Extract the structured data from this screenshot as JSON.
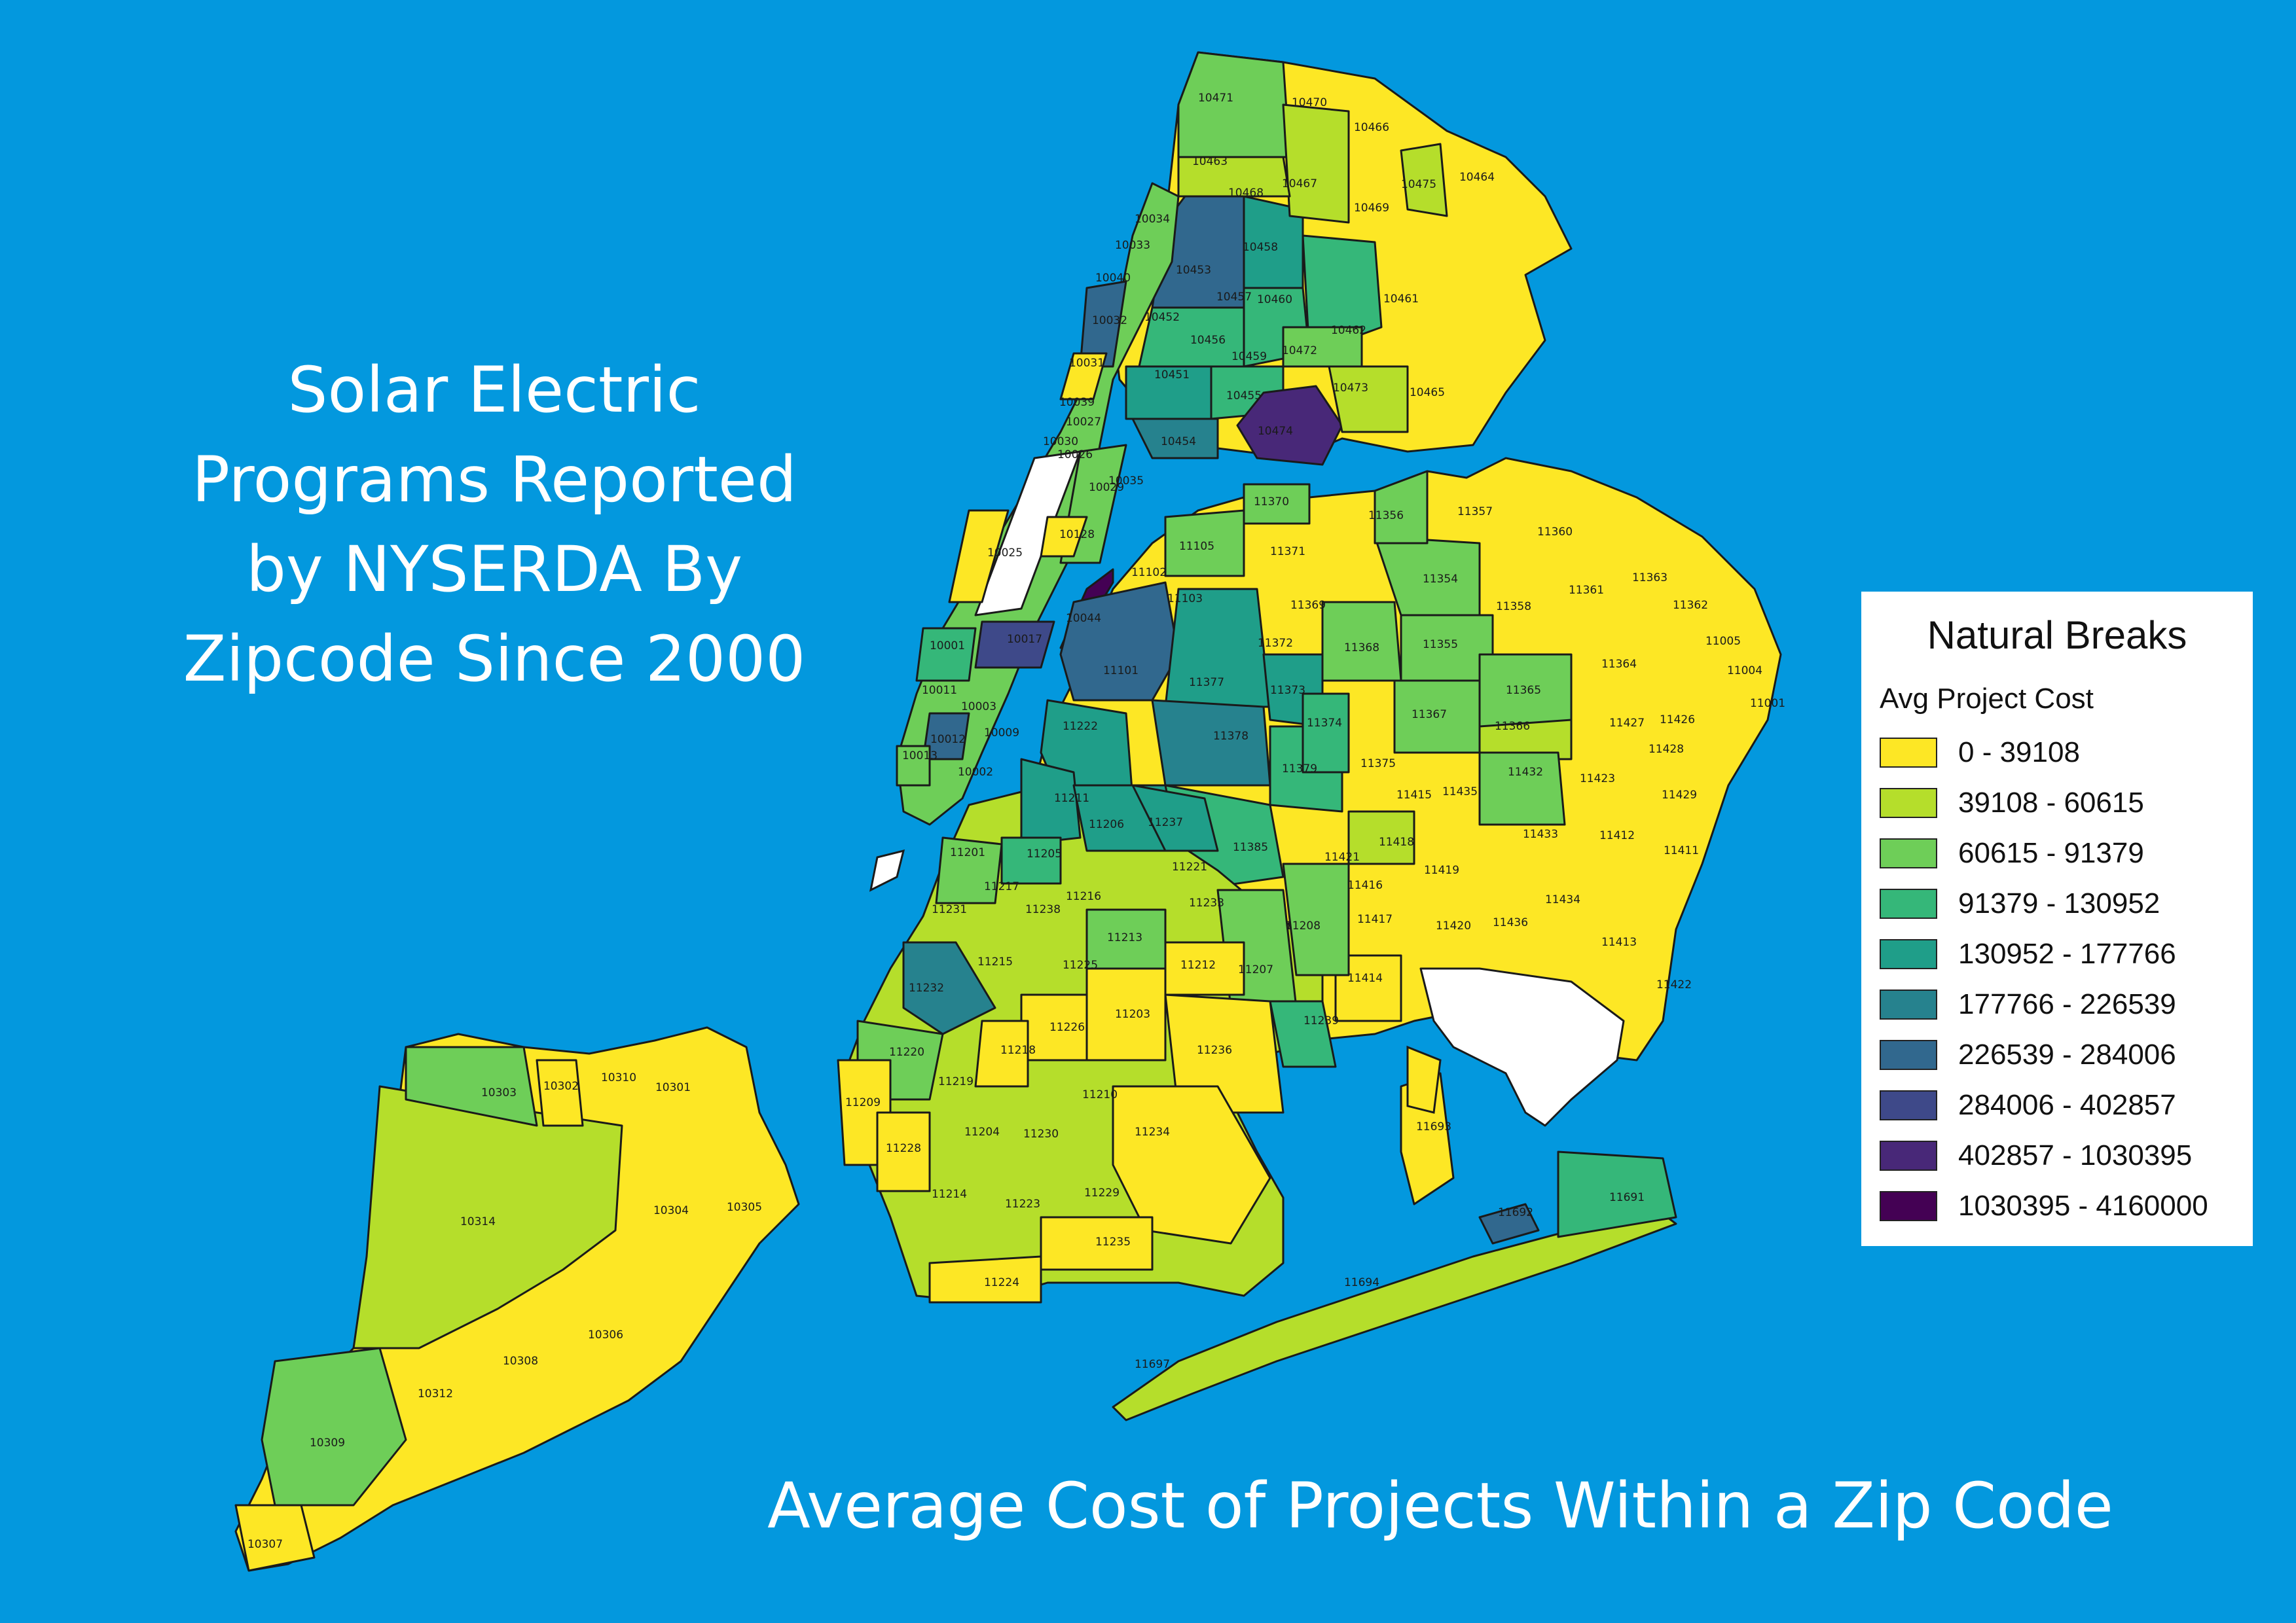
{
  "title_lines": [
    "Solar Electric",
    "Programs Reported",
    "by NYSERDA By",
    "Zipcode Since 2000"
  ],
  "subtitle": "Average Cost of Projects Within a Zip Code",
  "legend": {
    "title": "Natural Breaks",
    "subtitle": "Avg Project Cost",
    "classes": [
      {
        "label": "0 - 39108",
        "color": "#fde725"
      },
      {
        "label": "39108 - 60615",
        "color": "#b5de2b"
      },
      {
        "label": "60615 - 91379",
        "color": "#6ece58"
      },
      {
        "label": "91379 - 130952",
        "color": "#35b779"
      },
      {
        "label": "130952 - 177766",
        "color": "#1f9e89"
      },
      {
        "label": "177766 - 226539",
        "color": "#26828e"
      },
      {
        "label": "226539 - 284006",
        "color": "#31688e"
      },
      {
        "label": "284006 - 402857",
        "color": "#3e4989"
      },
      {
        "label": "402857 - 1030395",
        "color": "#482878"
      },
      {
        "label": "1030395 - 4160000",
        "color": "#440154"
      }
    ]
  },
  "zip_labels": [
    {
      "zip": "10471",
      "cls": 2
    },
    {
      "zip": "10470",
      "cls": 0
    },
    {
      "zip": "10466",
      "cls": 0
    },
    {
      "zip": "10463",
      "cls": 1
    },
    {
      "zip": "10467",
      "cls": 1
    },
    {
      "zip": "10464",
      "cls": 0
    },
    {
      "zip": "10475",
      "cls": 1
    },
    {
      "zip": "10469",
      "cls": 0
    },
    {
      "zip": "10468",
      "cls": 6
    },
    {
      "zip": "10458",
      "cls": 4
    },
    {
      "zip": "10453",
      "cls": 3
    },
    {
      "zip": "10457",
      "cls": 3
    },
    {
      "zip": "10460",
      "cls": 3
    },
    {
      "zip": "10461",
      "cls": 0
    },
    {
      "zip": "10462",
      "cls": 3
    },
    {
      "zip": "10452",
      "cls": 4
    },
    {
      "zip": "10456",
      "cls": 3
    },
    {
      "zip": "10472",
      "cls": 2
    },
    {
      "zip": "10473",
      "cls": 1
    },
    {
      "zip": "10465",
      "cls": 0
    },
    {
      "zip": "10459",
      "cls": 3
    },
    {
      "zip": "10451",
      "cls": 4
    },
    {
      "zip": "10474",
      "cls": 8
    },
    {
      "zip": "10455",
      "cls": 3
    },
    {
      "zip": "10454",
      "cls": 5
    },
    {
      "zip": "10032",
      "cls": 6
    },
    {
      "zip": "10031",
      "cls": 0
    },
    {
      "zip": "10034",
      "cls": 4
    },
    {
      "zip": "10033",
      "cls": 4
    },
    {
      "zip": "10040",
      "cls": 4
    },
    {
      "zip": "10027",
      "cls": 2
    },
    {
      "zip": "10026",
      "cls": 1
    },
    {
      "zip": "10030",
      "cls": 2
    },
    {
      "zip": "10039",
      "cls": 3
    },
    {
      "zip": "10029",
      "cls": 2
    },
    {
      "zip": "10035",
      "cls": 2
    },
    {
      "zip": "10128",
      "cls": 0
    },
    {
      "zip": "10025",
      "cls": 0
    },
    {
      "zip": "10001",
      "cls": 3
    },
    {
      "zip": "10011",
      "cls": 3
    },
    {
      "zip": "10003",
      "cls": 3
    },
    {
      "zip": "10012",
      "cls": 6
    },
    {
      "zip": "10013",
      "cls": 2
    },
    {
      "zip": "10002",
      "cls": 2
    },
    {
      "zip": "10009",
      "cls": 3
    },
    {
      "zip": "10017",
      "cls": 6
    },
    {
      "zip": "10044",
      "cls": 9
    },
    {
      "zip": "11101",
      "cls": 6
    },
    {
      "zip": "11102",
      "cls": 1
    },
    {
      "zip": "11105",
      "cls": 2
    },
    {
      "zip": "11103",
      "cls": 3
    },
    {
      "zip": "11370",
      "cls": 2
    },
    {
      "zip": "11371",
      "cls": 2
    },
    {
      "zip": "11369",
      "cls": 0
    },
    {
      "zip": "11372",
      "cls": 2
    },
    {
      "zip": "11377",
      "cls": 4
    },
    {
      "zip": "11373",
      "cls": 4
    },
    {
      "zip": "11378",
      "cls": 5
    },
    {
      "zip": "11379",
      "cls": 3
    },
    {
      "zip": "11368",
      "cls": 2
    },
    {
      "zip": "11354",
      "cls": 2
    },
    {
      "zip": "11355",
      "cls": 2
    },
    {
      "zip": "11356",
      "cls": 2
    },
    {
      "zip": "11357",
      "cls": 0
    },
    {
      "zip": "11360",
      "cls": 0
    },
    {
      "zip": "11358",
      "cls": 0
    },
    {
      "zip": "11361",
      "cls": 0
    },
    {
      "zip": "11363",
      "cls": 0
    },
    {
      "zip": "11362",
      "cls": 0
    },
    {
      "zip": "11364",
      "cls": 0
    },
    {
      "zip": "11365",
      "cls": 2
    },
    {
      "zip": "11367",
      "cls": 2
    },
    {
      "zip": "11366",
      "cls": 1
    },
    {
      "zip": "11375",
      "cls": 0
    },
    {
      "zip": "11374",
      "cls": 3
    },
    {
      "zip": "11385",
      "cls": 3
    },
    {
      "zip": "11222",
      "cls": 4
    },
    {
      "zip": "11211",
      "cls": 4
    },
    {
      "zip": "11206",
      "cls": 4
    },
    {
      "zip": "11237",
      "cls": 4
    },
    {
      "zip": "11427",
      "cls": 0
    },
    {
      "zip": "11426",
      "cls": 0
    },
    {
      "zip": "11428",
      "cls": 0
    },
    {
      "zip": "11004",
      "cls": 0
    },
    {
      "zip": "11005",
      "cls": 0
    },
    {
      "zip": "11001",
      "cls": 0
    },
    {
      "zip": "11423",
      "cls": 0
    },
    {
      "zip": "11432",
      "cls": 2
    },
    {
      "zip": "11435",
      "cls": 0
    },
    {
      "zip": "11415",
      "cls": 1
    },
    {
      "zip": "11429",
      "cls": 0
    },
    {
      "zip": "11412",
      "cls": 0
    },
    {
      "zip": "11411",
      "cls": 0
    },
    {
      "zip": "11433",
      "cls": 0
    },
    {
      "zip": "11434",
      "cls": 0
    },
    {
      "zip": "11413",
      "cls": 0
    },
    {
      "zip": "11422",
      "cls": 0
    },
    {
      "zip": "11436",
      "cls": 0
    },
    {
      "zip": "11420",
      "cls": 0
    },
    {
      "zip": "11419",
      "cls": 0
    },
    {
      "zip": "11418",
      "cls": 1
    },
    {
      "zip": "11421",
      "cls": 0
    },
    {
      "zip": "11416",
      "cls": 0
    },
    {
      "zip": "11417",
      "cls": 0
    },
    {
      "zip": "11414",
      "cls": 0
    },
    {
      "zip": "11208",
      "cls": 2
    },
    {
      "zip": "11207",
      "cls": 2
    },
    {
      "zip": "11239",
      "cls": 3
    },
    {
      "zip": "11221",
      "cls": 1
    },
    {
      "zip": "11233",
      "cls": 2
    },
    {
      "zip": "11213",
      "cls": 1
    },
    {
      "zip": "11216",
      "cls": 1
    },
    {
      "zip": "11238",
      "cls": 1
    },
    {
      "zip": "11205",
      "cls": 2
    },
    {
      "zip": "11201",
      "cls": 2
    },
    {
      "zip": "11217",
      "cls": 2
    },
    {
      "zip": "11231",
      "cls": 2
    },
    {
      "zip": "11215",
      "cls": 1
    },
    {
      "zip": "11232",
      "cls": 5
    },
    {
      "zip": "11225",
      "cls": 1
    },
    {
      "zip": "11212",
      "cls": 0
    },
    {
      "zip": "11203",
      "cls": 0
    },
    {
      "zip": "11226",
      "cls": 0
    },
    {
      "zip": "11218",
      "cls": 0
    },
    {
      "zip": "11236",
      "cls": 0
    },
    {
      "zip": "11220",
      "cls": 2
    },
    {
      "zip": "11219",
      "cls": 1
    },
    {
      "zip": "11210",
      "cls": 1
    },
    {
      "zip": "11209",
      "cls": 0
    },
    {
      "zip": "11228",
      "cls": 0
    },
    {
      "zip": "11204",
      "cls": 1
    },
    {
      "zip": "11230",
      "cls": 1
    },
    {
      "zip": "11234",
      "cls": 0
    },
    {
      "zip": "11214",
      "cls": 1
    },
    {
      "zip": "11223",
      "cls": 1
    },
    {
      "zip": "11229",
      "cls": 1
    },
    {
      "zip": "11235",
      "cls": 0
    },
    {
      "zip": "11224",
      "cls": 0
    },
    {
      "zip": "11693",
      "cls": 0
    },
    {
      "zip": "11692",
      "cls": 6
    },
    {
      "zip": "11691",
      "cls": 3
    },
    {
      "zip": "11694",
      "cls": 1
    },
    {
      "zip": "11697",
      "cls": 1
    },
    {
      "zip": "10303",
      "cls": 2
    },
    {
      "zip": "10302",
      "cls": 0
    },
    {
      "zip": "10310",
      "cls": 0
    },
    {
      "zip": "10301",
      "cls": 0
    },
    {
      "zip": "10314",
      "cls": 1
    },
    {
      "zip": "10304",
      "cls": 0
    },
    {
      "zip": "10305",
      "cls": 0
    },
    {
      "zip": "10306",
      "cls": 0
    },
    {
      "zip": "10308",
      "cls": 0
    },
    {
      "zip": "10312",
      "cls": 0
    },
    {
      "zip": "10309",
      "cls": 2
    },
    {
      "zip": "10307",
      "cls": 0
    }
  ]
}
